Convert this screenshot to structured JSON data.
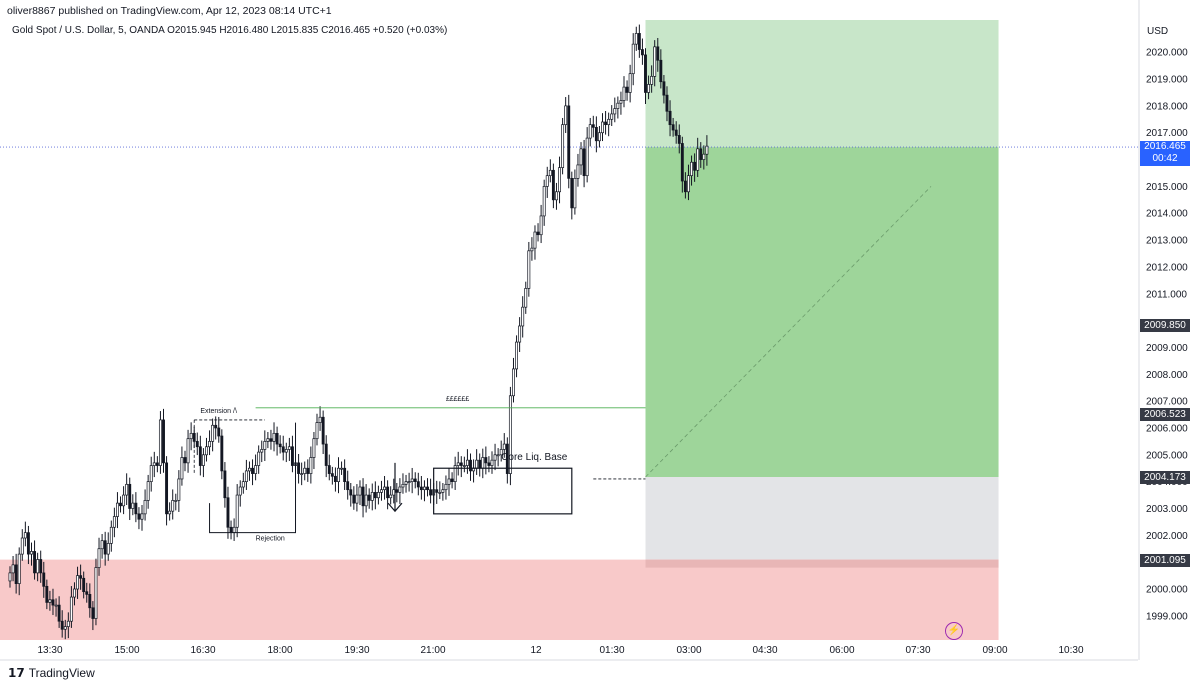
{
  "header": {
    "publisher": "oliver8867 published on TradingView.com, Apr 12, 2023 08:14 UTC+1",
    "symbol_line": "Gold Spot / U.S. Dollar, 5, OANDA  O2015.945  H2016.480  L2015.835  C2016.465  +0.520 (+0.03%)"
  },
  "footer": {
    "brand": "TradingView"
  },
  "colors": {
    "up": "#131722",
    "down": "#131722",
    "hollow_fill": "#ffffff",
    "target_zone": "#9ed59a",
    "target_zone_light": "#c8e6c9",
    "stop_zone": "#f8c9c9",
    "grey_zone": "#e3e4e7",
    "current_price_badge": "#2962ff",
    "level_badge": "#363a45",
    "text": "#131722"
  },
  "annotations": {
    "extension": "Extension /\\",
    "rejection": "Rejection",
    "pounds": "££££££",
    "core_liq_base": "Core Liq. Base"
  },
  "chart_data": {
    "type": "candlestick",
    "title": "Gold Spot / U.S. Dollar, 5, OANDA",
    "currency": "USD",
    "ohlc": {
      "open": 2015.945,
      "high": 2016.48,
      "low": 2015.835,
      "close": 2016.465,
      "change": "+0.520 (+0.03%)"
    },
    "countdown": "00:42",
    "y_ticks": [
      1999.0,
      2000.0,
      2001.0,
      2002.0,
      2003.0,
      2004.0,
      2005.0,
      2006.0,
      2007.0,
      2008.0,
      2009.0,
      2010.0,
      2011.0,
      2012.0,
      2013.0,
      2014.0,
      2015.0,
      2016.0,
      2017.0,
      2018.0,
      2019.0,
      2020.0
    ],
    "y_tick_labels": [
      "1999.000",
      "2000.000",
      "2001.000",
      "2002.000",
      "2003.000",
      "2004.000",
      "2005.000",
      "2006.000",
      "2007.000",
      "2008.000",
      "2009.000",
      "",
      "2011.000",
      "2012.000",
      "2013.000",
      "2014.000",
      "2015.000",
      "",
      "2017.000",
      "2018.000",
      "2019.000",
      "2020.000"
    ],
    "x_ticks": [
      "13:30",
      "15:00",
      "16:30",
      "18:00",
      "19:30",
      "21:00",
      "12",
      "01:30",
      "03:00",
      "04:30",
      "06:00",
      "07:30",
      "09:00",
      "10:30"
    ],
    "ylim": [
      1998.1,
      2021.2
    ],
    "levels": [
      {
        "label": "2016.465",
        "value": 2016.465,
        "kind": "current"
      },
      {
        "label": "2009.850",
        "value": 2009.85,
        "kind": "level"
      },
      {
        "label": "2006.523",
        "value": 2006.523,
        "kind": "level"
      },
      {
        "label": "2004.173",
        "value": 2004.173,
        "kind": "level"
      },
      {
        "label": "2001.095",
        "value": 2001.095,
        "kind": "level"
      }
    ],
    "position": {
      "entry": 2004.173,
      "target": 2021.2,
      "stop": 2001.095,
      "start_index": 207,
      "end_index": 322
    },
    "closes": [
      2000.6,
      2000.9,
      2000.2,
      2001.3,
      2001.9,
      2002.1,
      2001.3,
      2001.4,
      2000.6,
      2001.1,
      2000.6,
      2000.1,
      1999.5,
      1999.6,
      1999.4,
      1999.4,
      1998.8,
      1998.5,
      1998.6,
      1998.8,
      1999.7,
      2000.0,
      2000.5,
      2000.4,
      1999.9,
      1999.8,
      1999.3,
      1998.9,
      2000.8,
      2001.5,
      2001.8,
      2001.3,
      2001.7,
      2002.3,
      2002.7,
      2003.2,
      2003.1,
      2003.5,
      2003.9,
      2003.0,
      2003.2,
      2002.8,
      2002.6,
      2002.8,
      2003.3,
      2004.0,
      2004.6,
      2004.7,
      2004.6,
      2006.3,
      2004.7,
      2002.8,
      2002.9,
      2003.3,
      2003.3,
      2004.1,
      2004.9,
      2004.7,
      2005.6,
      2005.8,
      2005.5,
      2005.3,
      2004.6,
      2005.0,
      2005.3,
      2005.5,
      2006.1,
      2006.0,
      2005.7,
      2004.4,
      2003.4,
      2002.3,
      2002.1,
      2002.3,
      2003.5,
      2003.8,
      2004.0,
      2004.4,
      2004.5,
      2004.3,
      2004.6,
      2005.1,
      2005.2,
      2005.5,
      2005.6,
      2005.5,
      2005.8,
      2005.4,
      2005.3,
      2005.1,
      2005.2,
      2005.3,
      2004.6,
      2004.7,
      2004.3,
      2004.3,
      2004.5,
      2004.3,
      2004.9,
      2005.6,
      2006.2,
      2006.4,
      2005.4,
      2004.6,
      2004.3,
      2004.2,
      2004.0,
      2004.5,
      2004.5,
      2004.0,
      2003.7,
      2003.5,
      2003.2,
      2003.5,
      2003.8,
      2003.1,
      2003.5,
      2003.3,
      2003.6,
      2003.4,
      2003.6,
      2003.7,
      2003.8,
      2003.4,
      2003.5,
      2003.7,
      2003.6,
      2003.8,
      2003.9,
      2004.0,
      2004.0,
      2004.1,
      2004.0,
      2003.8,
      2003.7,
      2003.8,
      2003.7,
      2003.5,
      2003.7,
      2003.6,
      2003.6,
      2003.7,
      2003.9,
      2004.1,
      2004.0,
      2004.6,
      2004.7,
      2004.6,
      2004.6,
      2004.8,
      2004.4,
      2004.5,
      2004.8,
      2004.5,
      2004.9,
      2004.7,
      2004.6,
      2004.8,
      2005.0,
      2005.0,
      2005.2,
      2005.4,
      2004.3,
      2007.2,
      2008.2,
      2009.2,
      2009.8,
      2010.5,
      2011.2,
      2012.6,
      2012.7,
      2013.3,
      2013.2,
      2013.9,
      2015.0,
      2015.4,
      2015.6,
      2014.5,
      2014.8,
      2015.7,
      2017.3,
      2018.0,
      2015.3,
      2014.2,
      2015.3,
      2015.8,
      2016.4,
      2015.4,
      2016.8,
      2017.3,
      2017.2,
      2016.7,
      2017.0,
      2017.4,
      2017.3,
      2017.5,
      2017.7,
      2017.9,
      2018.1,
      2018.2,
      2018.7,
      2018.5,
      2019.2,
      2020.3,
      2020.7,
      2020.1,
      2019.9,
      2018.5,
      2018.8,
      2019.1,
      2020.2,
      2019.7,
      2018.9,
      2018.4,
      2017.8,
      2017.3,
      2017.1,
      2016.9,
      2016.6,
      2015.2,
      2014.8,
      2015.4,
      2015.9,
      2015.6,
      2016.4,
      2016.0,
      2016.2,
      2016.5
    ]
  }
}
